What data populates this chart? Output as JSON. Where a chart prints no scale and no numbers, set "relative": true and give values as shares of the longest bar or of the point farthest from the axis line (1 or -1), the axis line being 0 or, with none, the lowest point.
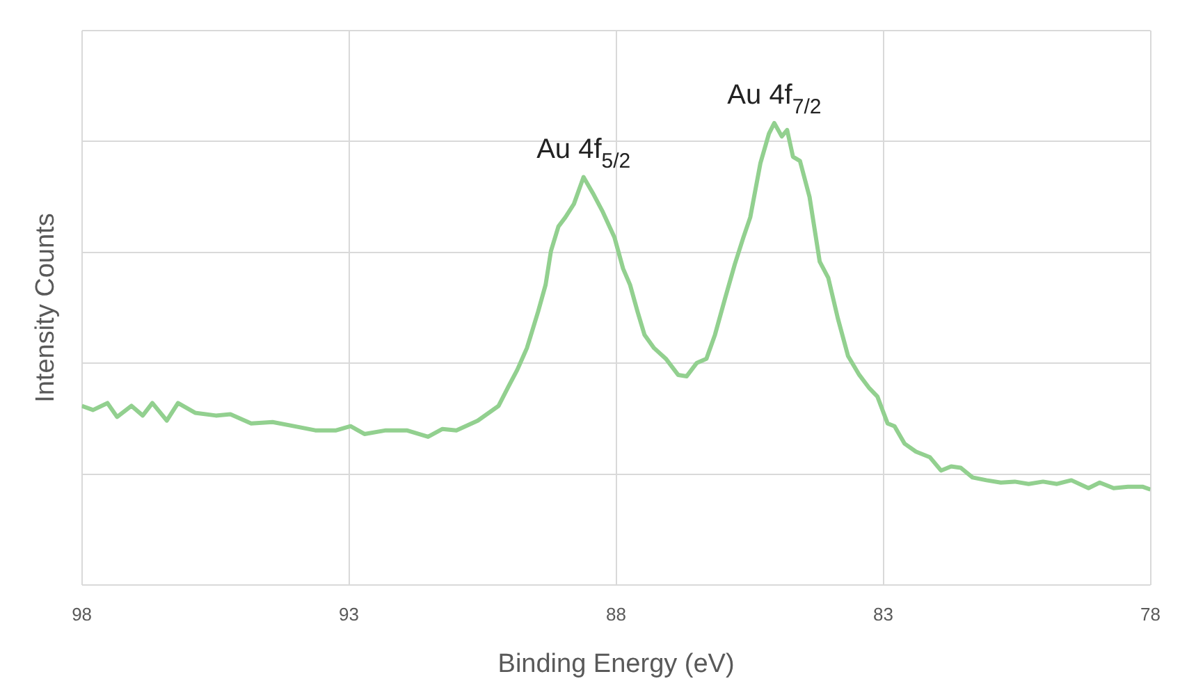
{
  "chart_data": {
    "type": "line",
    "relative": true,
    "xlabel": "Binding Energy (eV)",
    "ylabel": "Intensity Counts",
    "xlim": [
      98,
      78
    ],
    "xticks": [
      98,
      93,
      88,
      83,
      78
    ],
    "grid": true,
    "legend": false,
    "marker": "none",
    "line_style": "solid",
    "annotations": [
      {
        "text": "Au 4f$_{5/2}$",
        "x": 88.61,
        "y": 0.883
      },
      {
        "text": "Au 4f$_{7/2}$",
        "x": 85.04,
        "y": 1
      }
    ],
    "series": [
      {
        "color": "#92d08f",
        "x": [
          98.0,
          97.79,
          97.52,
          97.34,
          97.07,
          96.86,
          96.68,
          96.41,
          96.2,
          95.88,
          95.49,
          95.22,
          94.83,
          94.43,
          94.03,
          93.63,
          93.24,
          92.97,
          92.71,
          92.31,
          91.92,
          91.52,
          91.25,
          90.99,
          90.59,
          90.2,
          90.01,
          89.85,
          89.67,
          89.46,
          89.32,
          89.22,
          89.08,
          88.95,
          88.79,
          88.61,
          88.42,
          88.26,
          88.03,
          87.87,
          87.74,
          87.6,
          87.47,
          87.29,
          87.07,
          86.84,
          86.68,
          86.49,
          86.31,
          86.15,
          85.96,
          85.78,
          85.62,
          85.49,
          85.3,
          85.14,
          85.04,
          84.9,
          84.8,
          84.69,
          84.56,
          84.38,
          84.19,
          84.03,
          83.85,
          83.66,
          83.45,
          83.26,
          83.11,
          82.92,
          82.79,
          82.6,
          82.39,
          82.13,
          81.92,
          81.73,
          81.55,
          81.33,
          81.07,
          80.8,
          80.54,
          80.28,
          80.01,
          79.75,
          79.48,
          79.16,
          78.95,
          78.69,
          78.42,
          78.15,
          78.0
        ],
        "values": [
          0.388,
          0.379,
          0.394,
          0.364,
          0.388,
          0.367,
          0.394,
          0.356,
          0.394,
          0.373,
          0.367,
          0.37,
          0.35,
          0.353,
          0.344,
          0.335,
          0.335,
          0.344,
          0.327,
          0.335,
          0.335,
          0.321,
          0.338,
          0.335,
          0.356,
          0.388,
          0.431,
          0.466,
          0.513,
          0.592,
          0.65,
          0.723,
          0.776,
          0.796,
          0.825,
          0.883,
          0.845,
          0.81,
          0.752,
          0.685,
          0.65,
          0.592,
          0.542,
          0.513,
          0.49,
          0.455,
          0.452,
          0.481,
          0.49,
          0.542,
          0.621,
          0.694,
          0.752,
          0.796,
          0.913,
          0.977,
          1,
          0.971,
          0.985,
          0.927,
          0.918,
          0.84,
          0.7,
          0.665,
          0.577,
          0.496,
          0.455,
          0.426,
          0.408,
          0.35,
          0.344,
          0.306,
          0.289,
          0.277,
          0.248,
          0.257,
          0.254,
          0.233,
          0.227,
          0.222,
          0.224,
          0.219,
          0.224,
          0.219,
          0.227,
          0.21,
          0.222,
          0.21,
          0.213,
          0.213,
          0.207
        ]
      }
    ]
  }
}
